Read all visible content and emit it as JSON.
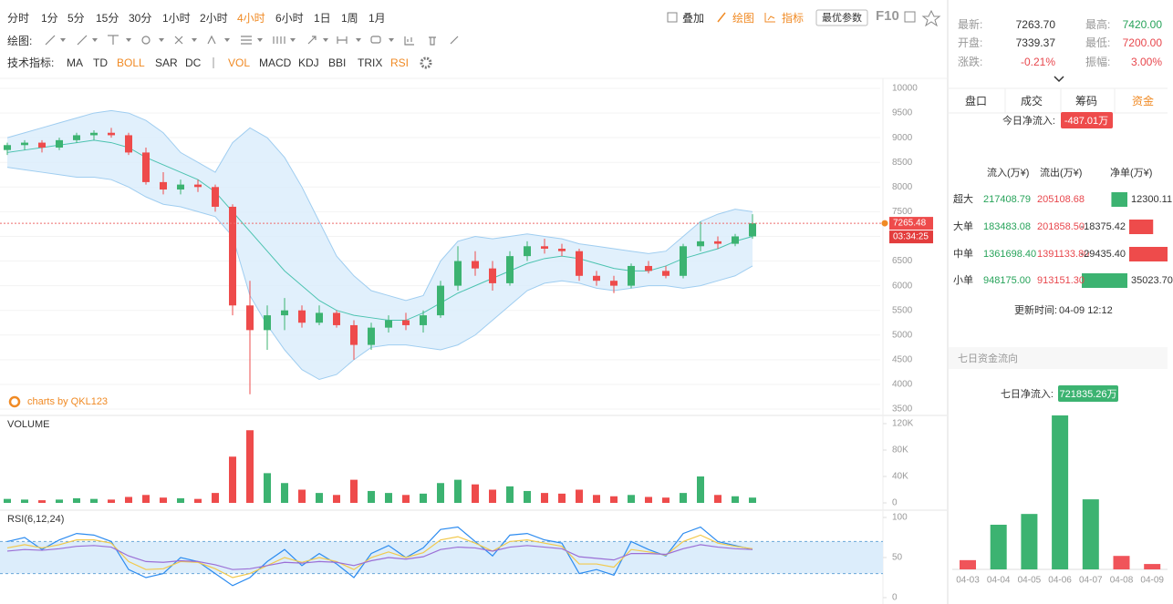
{
  "toolbar": {
    "periods": [
      "分时",
      "1分",
      "5分",
      "15分",
      "30分",
      "1小时",
      "2小时",
      "4小时",
      "6小时",
      "1日",
      "1周",
      "1月"
    ],
    "tools": [
      "叠加",
      "绘图",
      "指标"
    ],
    "best_params": "最优参数",
    "f10": "F10"
  },
  "drawing_label": "绘图:",
  "indicator_bar": {
    "label": "技术指标:",
    "main": [
      "MA",
      "TD",
      "BOLL",
      "SAR",
      "DC"
    ],
    "sub": [
      "VOL",
      "MACD",
      "KDJ",
      "BBI",
      "TRIX",
      "RSI"
    ]
  },
  "watermark": "charts by QKL123",
  "chart_data": [
    {
      "type": "candlestick",
      "open": [
        8750,
        8850,
        8900,
        8800,
        8950,
        9050,
        9100,
        9050,
        8700,
        8100,
        7950,
        8050,
        8000,
        7600,
        5600,
        5100,
        5400,
        5500,
        5250,
        5450,
        5200,
        4800,
        5150,
        5300,
        5200,
        5400,
        6000,
        6500,
        6350,
        6050,
        6600,
        6800,
        6750,
        6700,
        6200,
        6100,
        6000,
        6400,
        6300,
        6200,
        6800,
        6900,
        6850,
        7000
      ],
      "high": [
        8900,
        8950,
        8950,
        9000,
        9100,
        9150,
        9200,
        9100,
        8800,
        8300,
        8150,
        8150,
        8050,
        7650,
        6100,
        5600,
        5750,
        5600,
        5600,
        5500,
        5300,
        5250,
        5400,
        5450,
        5500,
        6100,
        6800,
        6700,
        6500,
        6700,
        6900,
        6950,
        6850,
        6750,
        6300,
        6200,
        6450,
        6500,
        6400,
        6850,
        7300,
        7000,
        7050,
        7450
      ],
      "low": [
        8650,
        8750,
        8700,
        8750,
        8900,
        8950,
        9000,
        8650,
        8050,
        7850,
        7850,
        7900,
        7500,
        5400,
        3800,
        4700,
        5100,
        5150,
        5200,
        5150,
        4500,
        4700,
        5050,
        5100,
        5050,
        5350,
        5900,
        6200,
        5900,
        6000,
        6500,
        6650,
        6600,
        6100,
        6000,
        5850,
        5950,
        6250,
        6150,
        6150,
        6700,
        6750,
        6800,
        6950
      ],
      "close": [
        8850,
        8900,
        8800,
        8950,
        9050,
        9100,
        9050,
        8700,
        8100,
        7950,
        8050,
        8000,
        7600,
        5600,
        5100,
        5400,
        5500,
        5250,
        5450,
        5200,
        4800,
        5150,
        5300,
        5200,
        5400,
        6000,
        6500,
        6350,
        6050,
        6600,
        6800,
        6750,
        6700,
        6200,
        6100,
        6000,
        6400,
        6300,
        6200,
        6800,
        6900,
        6850,
        7000,
        7265.48
      ],
      "upper": [
        9000,
        9100,
        9200,
        9300,
        9400,
        9500,
        9550,
        9500,
        9350,
        9100,
        8700,
        8500,
        8300,
        8900,
        9200,
        9000,
        8600,
        8000,
        7300,
        6600,
        6200,
        5900,
        5800,
        5700,
        5800,
        6500,
        6900,
        7000,
        6950,
        7000,
        7050,
        7000,
        6950,
        6850,
        6800,
        6750,
        6700,
        6650,
        6700,
        7000,
        7300,
        7450,
        7550,
        7500
      ],
      "middle": [
        8700,
        8750,
        8800,
        8850,
        8900,
        8950,
        8900,
        8800,
        8600,
        8450,
        8300,
        8150,
        7900,
        7500,
        7100,
        6700,
        6300,
        6000,
        5700,
        5500,
        5400,
        5350,
        5300,
        5300,
        5450,
        5650,
        5850,
        6000,
        6150,
        6300,
        6450,
        6550,
        6600,
        6550,
        6450,
        6350,
        6300,
        6300,
        6400,
        6550,
        6650,
        6750,
        6900,
        7000
      ],
      "lower": [
        8400,
        8350,
        8300,
        8250,
        8200,
        8200,
        8150,
        8000,
        7800,
        7650,
        7600,
        7500,
        7400,
        7000,
        5800,
        5200,
        4700,
        4300,
        4100,
        4200,
        4500,
        4750,
        4800,
        4800,
        4750,
        4700,
        4800,
        5000,
        5300,
        5600,
        5900,
        6050,
        6100,
        6050,
        5950,
        5900,
        5950,
        6000,
        6000,
        5950,
        6000,
        6100,
        6200,
        6400
      ],
      "up_color": "#3cb371",
      "down_color": "#ee4b4b",
      "band_color": "#d9ecfb",
      "band_line_color": "#9fcdf0",
      "middle_color": "#4cc3b0",
      "ylim": [
        3500,
        10000
      ],
      "yticks": [
        3500,
        4000,
        4500,
        5000,
        5500,
        6000,
        6500,
        7000,
        7500,
        8000,
        8500,
        9000,
        9500,
        10000
      ],
      "grid": true,
      "last_price": 7265.48,
      "countdown": "03:34:25"
    },
    {
      "type": "bar",
      "title": "VOLUME",
      "values": [
        6000,
        5000,
        4000,
        5000,
        7000,
        6000,
        5000,
        9000,
        12000,
        8000,
        7000,
        6000,
        15000,
        70000,
        110000,
        45000,
        30000,
        20000,
        15000,
        12000,
        35000,
        18000,
        15000,
        12000,
        14000,
        30000,
        35000,
        28000,
        20000,
        25000,
        18000,
        15000,
        14000,
        20000,
        12000,
        10000,
        12000,
        9000,
        8000,
        15000,
        40000,
        12000,
        10000,
        8000
      ],
      "ylim": [
        0,
        120000
      ],
      "yticks": [
        0,
        {
          "value": 40000,
          "label": "40K"
        },
        {
          "value": 80000,
          "label": "80K"
        },
        {
          "value": 120000,
          "label": "120K"
        }
      ]
    },
    {
      "type": "line",
      "title": "RSI(6,12,24)",
      "series": [
        {
          "color": "#2d8cf0",
          "values": [
            70,
            75,
            60,
            72,
            80,
            78,
            70,
            35,
            25,
            30,
            50,
            45,
            30,
            15,
            25,
            45,
            60,
            40,
            55,
            42,
            25,
            55,
            65,
            50,
            62,
            85,
            88,
            70,
            52,
            78,
            80,
            72,
            68,
            30,
            35,
            28,
            70,
            60,
            52,
            80,
            88,
            70,
            65,
            60
          ]
        },
        {
          "color": "#f2c94c",
          "values": [
            62,
            66,
            62,
            66,
            72,
            72,
            68,
            45,
            35,
            36,
            45,
            44,
            36,
            25,
            30,
            40,
            50,
            44,
            50,
            45,
            35,
            50,
            57,
            50,
            56,
            72,
            76,
            68,
            58,
            70,
            72,
            68,
            64,
            42,
            42,
            38,
            60,
            57,
            53,
            70,
            78,
            68,
            64,
            61
          ]
        },
        {
          "color": "#9b6fd6",
          "values": [
            58,
            60,
            59,
            61,
            64,
            65,
            63,
            52,
            45,
            44,
            46,
            45,
            41,
            35,
            36,
            40,
            44,
            43,
            45,
            44,
            40,
            46,
            50,
            48,
            51,
            60,
            63,
            62,
            58,
            63,
            65,
            63,
            61,
            51,
            49,
            47,
            55,
            55,
            54,
            61,
            66,
            63,
            61,
            60
          ]
        }
      ],
      "bands": [
        30,
        70
      ],
      "ylim": [
        0,
        100
      ],
      "yticks": [
        0,
        50,
        100
      ]
    },
    {
      "type": "bar",
      "title": "七日资金流向",
      "categories": [
        "04-03",
        "04-04",
        "04-05",
        "04-06",
        "04-07",
        "04-08",
        "04-09"
      ],
      "values": [
        -24000,
        116000,
        144000,
        400000,
        182000,
        -35000,
        -14000
      ],
      "up_color": "#3cb371",
      "down_color": "#f0545a",
      "summary_label": "七日净流入:",
      "summary_value": "721835.26万"
    }
  ],
  "quote": [
    {
      "label": "最新:",
      "value": "7263.70",
      "label2": "最高:",
      "value2": "7420.00"
    },
    {
      "label": "开盘:",
      "value": "7339.37",
      "label2": "最低:",
      "value2": "7200.00"
    },
    {
      "label": "涨跌:",
      "value": "-0.21%",
      "label2": "振幅:",
      "value2": "3.00%"
    }
  ],
  "tabs": [
    "盘口",
    "成交",
    "筹码",
    "资金"
  ],
  "fund_flow": {
    "today_label": "今日净流入:",
    "today_value": "-487.01万",
    "headers": [
      "流入(万¥)",
      "流出(万¥)",
      "净单(万¥)"
    ],
    "rows": [
      {
        "name": "超大",
        "inflow": "217408.79",
        "outflow": "205108.68",
        "net": {
          "value": 12300.11,
          "label": "12300.11"
        }
      },
      {
        "name": "大单",
        "inflow": "183483.08",
        "outflow": "201858.50",
        "net": {
          "value": -18375.42,
          "label": "-18375.42"
        }
      },
      {
        "name": "中单",
        "inflow": "1361698.40",
        "outflow": "1391133.80",
        "net": {
          "value": -29435.4,
          "label": "-29435.40"
        }
      },
      {
        "name": "小单",
        "inflow": "948175.00",
        "outflow": "913151.30",
        "net": {
          "value": 35023.7,
          "label": "35023.70"
        }
      }
    ],
    "update_label": "更新时间:",
    "update_time": "04-09 12:12"
  }
}
